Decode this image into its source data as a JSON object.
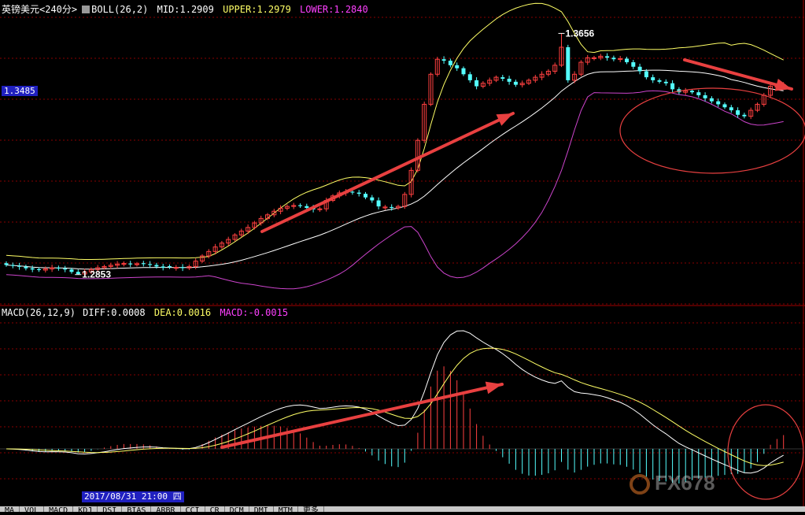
{
  "instrument": "英镑美元<240分>",
  "boll_header": {
    "label": "BOLL(26,2)",
    "mid": "MID:1.2909",
    "upper": "UPPER:1.2979",
    "lower": "LOWER:1.2840"
  },
  "macd_header": {
    "label": "MACD(26,12,9)",
    "diff": "DIFF:0.0008",
    "dea": "DEA:0.0016",
    "macd": "MACD:-0.0015"
  },
  "price_tag": "1.3485",
  "date_tag": "2017/08/31 21:00 四",
  "high_label": "1.3656",
  "low_label": "1.2853",
  "tabs": [
    "MA",
    "VOL",
    "MACD",
    "KDJ",
    "DSI",
    "BIAS",
    "ARBR",
    "CCI",
    "CR",
    "DCM",
    "DMI",
    "MTM",
    "更多"
  ],
  "watermark": "FX678",
  "colors": {
    "background": "#000000",
    "up_candle": "#ff4040",
    "down_candle": "#54ffff",
    "boll_upper": "#ffff66",
    "boll_mid": "#ffffff",
    "boll_lower": "#cc44cc",
    "header_text": "#ffffff",
    "lower_text": "#ff40ff",
    "annotation": "#e84040",
    "grid": "#880000"
  },
  "chart_data": [
    {
      "type": "candlestick",
      "title": "英镑美元<240分>",
      "series_names": [
        "UPPER",
        "MID",
        "LOWER"
      ],
      "ylim": [
        1.275,
        1.372
      ],
      "grid": true,
      "closes": [
        1.2885,
        1.2882,
        1.2879,
        1.2874,
        1.287,
        1.2868,
        1.2872,
        1.2876,
        1.2873,
        1.287,
        1.2862,
        1.2855,
        1.2862,
        1.287,
        1.2876,
        1.288,
        1.2884,
        1.2888,
        1.289,
        1.2887,
        1.2889,
        1.2888,
        1.2885,
        1.288,
        1.2876,
        1.2878,
        1.2877,
        1.2875,
        1.288,
        1.2898,
        1.2915,
        1.293,
        1.2945,
        1.2958,
        1.297,
        1.2985,
        1.2998,
        1.301,
        1.3025,
        1.304,
        1.3052,
        1.3064,
        1.3074,
        1.308,
        1.3083,
        1.3081,
        1.3075,
        1.307,
        1.3072,
        1.31,
        1.3115,
        1.3125,
        1.3128,
        1.3126,
        1.3122,
        1.311,
        1.31,
        1.308,
        1.3078,
        1.3075,
        1.308,
        1.312,
        1.32,
        1.33,
        1.342,
        1.352,
        1.357,
        1.3565,
        1.355,
        1.354,
        1.352,
        1.35,
        1.348,
        1.349,
        1.35,
        1.351,
        1.3505,
        1.3495,
        1.3485,
        1.349,
        1.35,
        1.351,
        1.352,
        1.353,
        1.355,
        1.361,
        1.35,
        1.352,
        1.356,
        1.3575,
        1.3575,
        1.358,
        1.3575,
        1.357,
        1.3572,
        1.356,
        1.3545,
        1.353,
        1.351,
        1.35,
        1.3495,
        1.349,
        1.347,
        1.346,
        1.3465,
        1.346,
        1.345,
        1.344,
        1.343,
        1.342,
        1.341,
        1.34,
        1.3385,
        1.338,
        1.34,
        1.342,
        1.345,
        1.348,
        1.348,
        1.3485
      ],
      "annotations": {
        "high": 1.3656,
        "low": 1.2853
      }
    },
    {
      "type": "macd",
      "title": "MACD(26,12,9)",
      "series_names": [
        "DIFF",
        "DEA",
        "MACD"
      ],
      "note": "DIFF/DEA/MACD computed from the candlestick closes with parameters (26,12,9)"
    }
  ]
}
